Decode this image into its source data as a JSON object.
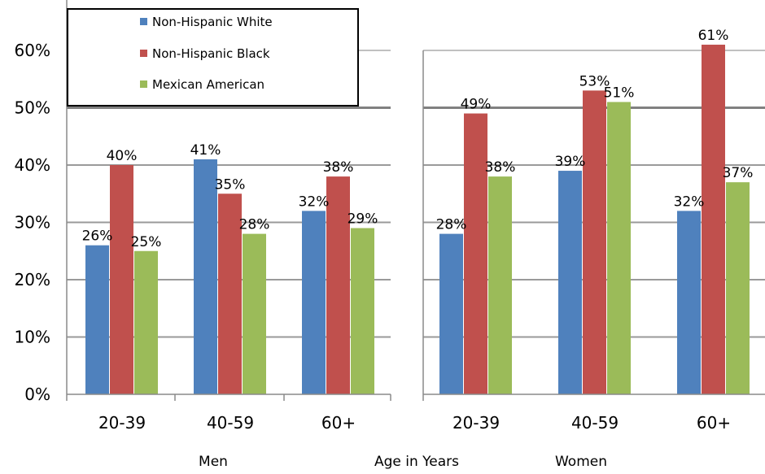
{
  "chart_data": {
    "type": "bar",
    "xlabel": "Age in Years",
    "yticks": [
      "0%",
      "10%",
      "20%",
      "30%",
      "40%",
      "50%",
      "60%"
    ],
    "ylim": [
      0,
      66
    ],
    "grid": true,
    "legend_position": "top-left",
    "series": [
      {
        "name": "Non-Hispanic White",
        "color": "#4f81bd"
      },
      {
        "name": "Non-Hispanic Black",
        "color": "#c0504d"
      },
      {
        "name": "Mexican American",
        "color": "#9bbb59"
      }
    ],
    "panels": [
      {
        "caption": "Men",
        "categories": [
          "20-39",
          "40-59",
          "60+"
        ],
        "values": [
          [
            26,
            41,
            32
          ],
          [
            40,
            35,
            38
          ],
          [
            25,
            28,
            29
          ]
        ],
        "labels": [
          [
            "26%",
            "41%",
            "32%"
          ],
          [
            "40%",
            "35%",
            "38%"
          ],
          [
            "25%",
            "28%",
            "29%"
          ]
        ]
      },
      {
        "caption": "Women",
        "categories": [
          "20-39",
          "40-59",
          "60+"
        ],
        "values": [
          [
            28,
            39,
            32
          ],
          [
            49,
            53,
            61
          ],
          [
            38,
            51,
            37
          ]
        ],
        "labels": [
          [
            "28%",
            "39%",
            "32%"
          ],
          [
            "49%",
            "53%",
            "61%"
          ],
          [
            "38%",
            "51%",
            "37%"
          ]
        ]
      }
    ]
  }
}
